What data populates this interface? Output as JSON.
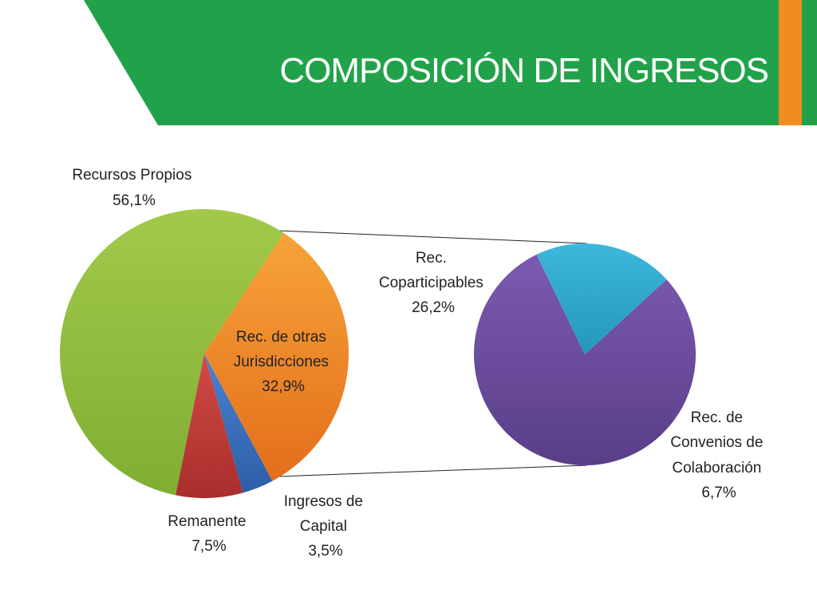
{
  "slide": {
    "title": "COMPOSICIÓN DE INGRESOS",
    "colors": {
      "header_green": "#21A24A",
      "accent_orange": "#F28C1E"
    }
  },
  "chart_data": {
    "type": "pie",
    "subtype": "pie-of-pie",
    "categories": [
      "Recursos Propios",
      "Rec. de otras Jurisdicciones",
      "Ingresos de Capital",
      "Remanente"
    ],
    "values": [
      56.1,
      32.9,
      3.5,
      7.5
    ],
    "data_labels": [
      [
        "Recursos Propios",
        "56,1%"
      ],
      [
        "Rec. de otras",
        "Jurisdicciones",
        "32,9%"
      ],
      [
        "Ingresos de",
        "Capital",
        "3,5%"
      ],
      [
        "Remanente",
        "7,5%"
      ]
    ],
    "colors": [
      "#8FBC3F",
      "#F07F20",
      "#3C6FBE",
      "#C23A37"
    ],
    "secondary": {
      "expands": "Rec. de otras Jurisdicciones",
      "categories": [
        "Rec. Coparticipables",
        "Rec. de Convenios de Colaboración"
      ],
      "values": [
        26.2,
        6.7
      ],
      "data_labels": [
        [
          "Rec.",
          "Coparticipables",
          "26,2%"
        ],
        [
          "Rec. de",
          "Convenios de",
          "Colaboración",
          "6,7%"
        ]
      ],
      "colors": [
        "#6A4C9C",
        "#2FA9CF"
      ]
    },
    "legend": "none"
  }
}
